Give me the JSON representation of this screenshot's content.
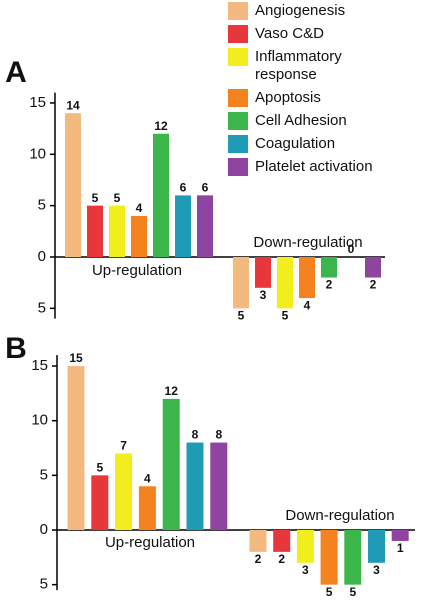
{
  "chart_data": [
    {
      "type": "bar",
      "panel": "A",
      "groups": [
        "Up-regulation",
        "Down-regulation"
      ],
      "ylim": [
        -6,
        16
      ],
      "yticks": [
        {
          "value": -5,
          "label": "5"
        },
        0,
        5,
        10,
        15
      ],
      "series": [
        {
          "name": "Angiogenesis",
          "color": "#f4b97f",
          "values": [
            14,
            -5
          ],
          "value_labels": [
            "14",
            "5"
          ]
        },
        {
          "name": "Vaso C&D",
          "color": "#e8373a",
          "values": [
            5,
            -3
          ],
          "value_labels": [
            "5",
            "3"
          ]
        },
        {
          "name": "Inflammatory response",
          "color": "#f2ee1d",
          "values": [
            5,
            -5
          ],
          "value_labels": [
            "5",
            "5"
          ]
        },
        {
          "name": "Apoptosis",
          "color": "#f4821f",
          "values": [
            4,
            -4
          ],
          "value_labels": [
            "4",
            "4"
          ]
        },
        {
          "name": "Cell Adhesion",
          "color": "#3cb54a",
          "values": [
            12,
            -2
          ],
          "value_labels": [
            "12",
            "2"
          ]
        },
        {
          "name": "Coagulation",
          "color": "#1f9bb5",
          "values": [
            6,
            0
          ],
          "value_labels": [
            "6",
            "0"
          ]
        },
        {
          "name": "Platelet activation",
          "color": "#8e44a0",
          "values": [
            6,
            -2
          ],
          "value_labels": [
            "6",
            "2"
          ]
        }
      ]
    },
    {
      "type": "bar",
      "panel": "B",
      "groups": [
        "Up-regulation",
        "Down-regulation"
      ],
      "ylim": [
        -5.5,
        16
      ],
      "yticks": [
        {
          "value": -5,
          "label": "5"
        },
        0,
        5,
        10,
        15
      ],
      "series": [
        {
          "values": [
            15,
            -2
          ],
          "value_labels": [
            "15",
            "2"
          ]
        },
        {
          "values": [
            5,
            -2
          ],
          "value_labels": [
            "5",
            "2"
          ]
        },
        {
          "values": [
            7,
            -3
          ],
          "value_labels": [
            "7",
            "3"
          ]
        },
        {
          "values": [
            4,
            -5
          ],
          "value_labels": [
            "4",
            "5"
          ]
        },
        {
          "values": [
            12,
            -5
          ],
          "value_labels": [
            "12",
            "5"
          ]
        },
        {
          "values": [
            8,
            -3
          ],
          "value_labels": [
            "8",
            "3"
          ]
        },
        {
          "values": [
            8,
            -1
          ],
          "value_labels": [
            "8",
            "1"
          ]
        }
      ]
    }
  ]
}
